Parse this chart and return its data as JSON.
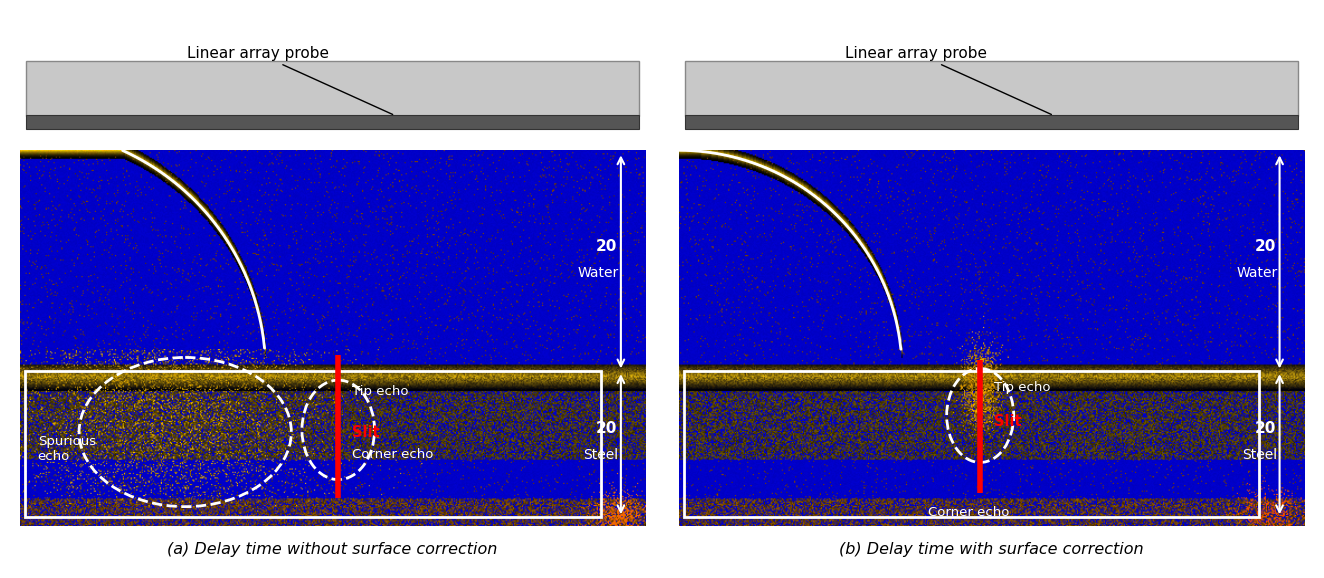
{
  "fig_width": 13.24,
  "fig_height": 5.78,
  "bg_color": "#ffffff",
  "panel_a_title": "(a) Delay time without surface correction",
  "panel_b_title": "(b) Delay time with surface correction",
  "probe_label": "Linear array probe",
  "water_label": "Water",
  "steel_label": "Steel",
  "dim_20_label": "20",
  "slit_label": "Slit",
  "tip_echo_label": "Tip echo",
  "corner_echo_label": "Corner echo",
  "spurious_echo_label": "Spurious\necho",
  "probe_body_color": "#c8c8c8",
  "probe_face_color": "#555555",
  "probe_edge_color": "#888888",
  "probe_face_edge_color": "#333333"
}
